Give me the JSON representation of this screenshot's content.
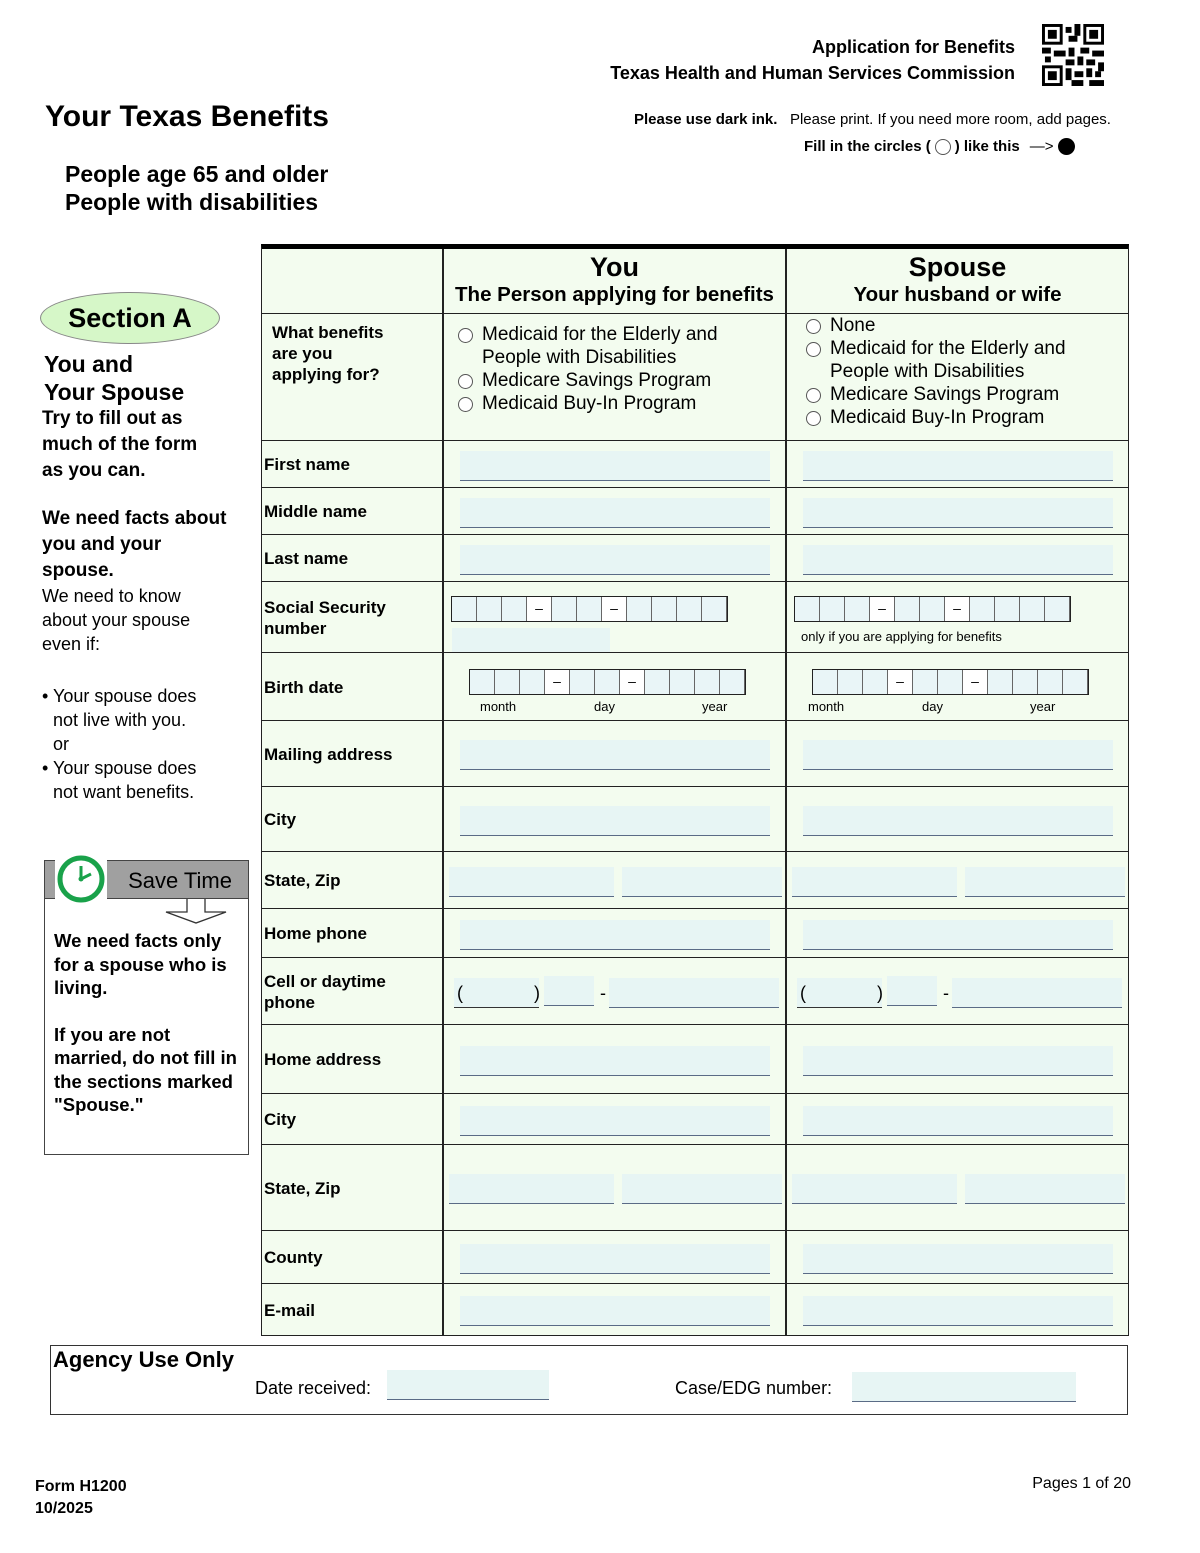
{
  "header": {
    "line1": "Application for Benefits",
    "line2": "Texas Health and Human Services Commission",
    "title": "Your Texas Benefits",
    "ink_bold": "Please use dark ink.",
    "ink_rest": "Please print. If you need more room, add pages.",
    "circles_a": "Fill in the circles (",
    "circles_b": ") like this",
    "arrow": "—>",
    "audience1": "People age 65 and older",
    "audience2": "People with disabilities"
  },
  "side": {
    "section": "Section A",
    "h1": "You and",
    "h2": "Your Spouse",
    "try": "Try to fill out as much of the form as you can.",
    "facts": "We need facts about you and your spouse.",
    "know": "We need to know about your spouse even if:",
    "b1": "• Your spouse does",
    "b1b": "not live with you.",
    "or": "or",
    "b2": "• Your spouse does",
    "b2b": "not want benefits."
  },
  "save": {
    "title": "Save Time",
    "p1": "We need facts only for a spouse who is living.",
    "p2": "If you are not married, do not fill in",
    "p3": "the sections marked \"Spouse.\""
  },
  "table": {
    "you_title": "You",
    "you_sub": "The Person applying for benefits",
    "spouse_title": "Spouse",
    "spouse_sub": "Your husband or wife",
    "benefits_label": "What benefits are you applying for?",
    "you_options": [
      "Medicaid for the Elderly and People with Disabilities",
      "Medicare Savings Program",
      "Medicaid Buy-In Program"
    ],
    "spouse_options": [
      "None",
      "Medicaid for the Elderly and People with Disabilities",
      "Medicare Savings Program",
      "Medicaid Buy-In Program"
    ],
    "rows": [
      {
        "label": "First name",
        "type": "text"
      },
      {
        "label": "Middle name",
        "type": "text"
      },
      {
        "label": "Last name",
        "type": "text"
      },
      {
        "label": "Social Security number",
        "type": "ssn",
        "spouse_note": "only if you are applying  for benefits"
      },
      {
        "label": "Birth date",
        "type": "date",
        "sub": [
          "month",
          "day",
          "year"
        ]
      },
      {
        "label": "Mailing address",
        "type": "text"
      },
      {
        "label": "City",
        "type": "text"
      },
      {
        "label": "State, Zip",
        "type": "split"
      },
      {
        "label": "Home phone",
        "type": "text"
      },
      {
        "label": "Cell or daytime phone",
        "type": "phone"
      },
      {
        "label": "Home address",
        "type": "text"
      },
      {
        "label": "City",
        "type": "text"
      },
      {
        "label": "State, Zip",
        "type": "split"
      },
      {
        "label": "County",
        "type": "text"
      },
      {
        "label": "E-mail",
        "type": "text"
      }
    ]
  },
  "agency": {
    "title": "Agency Use Only",
    "date_label": "Date received:",
    "case_label": "Case/EDG number:"
  },
  "footer": {
    "form": "Form H1200",
    "date": "10/2025",
    "pages": "Pages 1 of 20"
  }
}
